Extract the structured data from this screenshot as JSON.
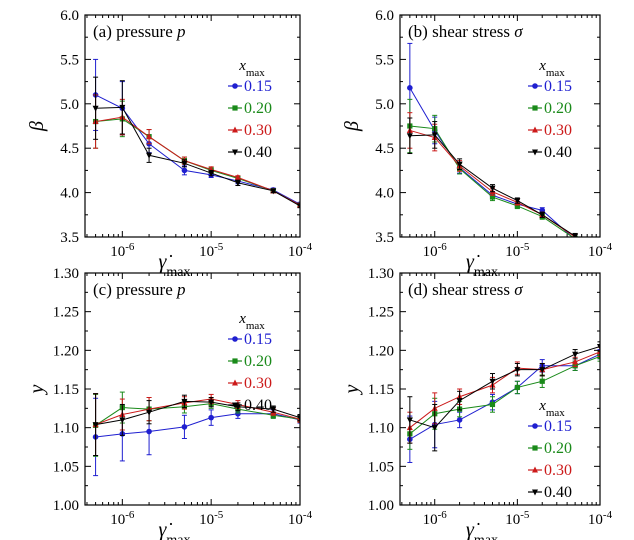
{
  "colors": {
    "0.15": "#1f1fd0",
    "0.20": "#1a8a1a",
    "0.30": "#cc1a1a",
    "0.40": "#000000"
  },
  "chart_data": [
    {
      "type": "line",
      "panel": "a",
      "title_prefix": "(a)  pressure ",
      "title_var": "p",
      "ylabel": "β",
      "xlabel_base": "γ̇",
      "xlabel_sub": "max",
      "xscale": "log",
      "xlim": [
        3.8e-07,
        0.0001
      ],
      "ylim": [
        3.5,
        6.0
      ],
      "yticks": [
        "3.5",
        "4.0",
        "4.5",
        "5.0",
        "5.5",
        "6.0"
      ],
      "xticks": [
        {
          "value": 1e-06,
          "base": "10",
          "exp": "-6"
        },
        {
          "value": 1e-05,
          "base": "10",
          "exp": "-5"
        },
        {
          "value": 0.0001,
          "base": "10",
          "exp": "-4"
        }
      ],
      "legend_title_base": "x",
      "legend_title_sub": "max",
      "legend_position": "right",
      "x": [
        5e-07,
        1e-06,
        2e-06,
        5e-06,
        1e-05,
        2e-05,
        5e-05,
        0.0001
      ],
      "series": [
        {
          "name": "0.15",
          "values": [
            5.1,
            4.95,
            4.55,
            4.25,
            4.2,
            4.13,
            4.03,
            3.87
          ],
          "errors": [
            0.4,
            0.3,
            0.1,
            0.05,
            0.03,
            0.03,
            0.02,
            0.02
          ]
        },
        {
          "name": "0.20",
          "values": [
            4.8,
            4.83,
            4.63,
            4.36,
            4.25,
            4.16,
            4.02,
            3.86
          ],
          "errors": [
            0.3,
            0.2,
            0.08,
            0.04,
            0.03,
            0.02,
            0.02,
            0.02
          ]
        },
        {
          "name": "0.30",
          "values": [
            4.8,
            4.85,
            4.63,
            4.36,
            4.26,
            4.17,
            4.02,
            3.86
          ],
          "errors": [
            0.3,
            0.2,
            0.08,
            0.04,
            0.03,
            0.02,
            0.02,
            0.02
          ]
        },
        {
          "name": "0.40",
          "values": [
            4.95,
            4.96,
            4.42,
            4.33,
            4.22,
            4.11,
            4.02,
            3.85
          ],
          "errors": [
            0.35,
            0.3,
            0.08,
            0.04,
            0.03,
            0.03,
            0.02,
            0.02
          ]
        }
      ]
    },
    {
      "type": "line",
      "panel": "b",
      "title_prefix": "(b)  shear stress ",
      "title_var": "σ",
      "ylabel": "β",
      "xlabel_base": "γ̇",
      "xlabel_sub": "max",
      "xscale": "log",
      "xlim": [
        3.8e-07,
        0.0001
      ],
      "ylim": [
        3.5,
        6.0
      ],
      "yticks": [
        "3.5",
        "4.0",
        "4.5",
        "5.0",
        "5.5",
        "6.0"
      ],
      "xticks": [
        {
          "value": 1e-06,
          "base": "10",
          "exp": "-6"
        },
        {
          "value": 1e-05,
          "base": "10",
          "exp": "-5"
        },
        {
          "value": 0.0001,
          "base": "10",
          "exp": "-4"
        }
      ],
      "legend_title_base": "x",
      "legend_title_sub": "max",
      "legend_position": "right",
      "x": [
        5e-07,
        1e-06,
        2e-06,
        5e-06,
        1e-05,
        2e-05,
        5e-05
      ],
      "series": [
        {
          "name": "0.15",
          "values": [
            5.18,
            4.7,
            4.28,
            3.97,
            3.87,
            3.8,
            3.47
          ],
          "errors": [
            0.5,
            0.15,
            0.06,
            0.04,
            0.03,
            0.03,
            0.03
          ]
        },
        {
          "name": "0.20",
          "values": [
            4.75,
            4.72,
            4.27,
            3.95,
            3.85,
            3.73,
            3.48
          ],
          "errors": [
            0.3,
            0.15,
            0.06,
            0.04,
            0.03,
            0.03,
            0.03
          ]
        },
        {
          "name": "0.30",
          "values": [
            4.7,
            4.62,
            4.3,
            4.01,
            3.89,
            3.75,
            3.5
          ],
          "errors": [
            0.2,
            0.15,
            0.06,
            0.04,
            0.03,
            0.03,
            0.03
          ]
        },
        {
          "name": "0.40",
          "values": [
            4.64,
            4.65,
            4.32,
            4.05,
            3.91,
            3.75,
            3.51
          ],
          "errors": [
            0.2,
            0.15,
            0.06,
            0.04,
            0.03,
            0.03,
            0.03
          ]
        }
      ]
    },
    {
      "type": "line",
      "panel": "c",
      "title_prefix": "(c)  pressure ",
      "title_var": "p",
      "ylabel": "y",
      "xlabel_base": "γ̇",
      "xlabel_sub": "max",
      "xscale": "log",
      "xlim": [
        3.8e-07,
        0.0001
      ],
      "ylim": [
        1.0,
        1.3
      ],
      "yticks": [
        "1.00",
        "1.05",
        "1.10",
        "1.15",
        "1.20",
        "1.25",
        "1.30"
      ],
      "xticks": [
        {
          "value": 1e-06,
          "base": "10",
          "exp": "-6"
        },
        {
          "value": 1e-05,
          "base": "10",
          "exp": "-5"
        },
        {
          "value": 0.0001,
          "base": "10",
          "exp": "-4"
        }
      ],
      "legend_title_base": "x",
      "legend_title_sub": "max",
      "legend_position": "right",
      "x": [
        5e-07,
        1e-06,
        2e-06,
        5e-06,
        1e-05,
        2e-05,
        5e-05,
        0.0001
      ],
      "series": [
        {
          "name": "0.15",
          "values": [
            1.088,
            1.092,
            1.095,
            1.101,
            1.113,
            1.118,
            1.118,
            1.11
          ],
          "errors": [
            0.05,
            0.035,
            0.03,
            0.015,
            0.01,
            0.006,
            0.005,
            0.004
          ]
        },
        {
          "name": "0.20",
          "values": [
            1.103,
            1.126,
            1.124,
            1.127,
            1.131,
            1.124,
            1.116,
            1.111
          ],
          "errors": [
            0.04,
            0.02,
            0.015,
            0.008,
            0.006,
            0.005,
            0.004,
            0.004
          ]
        },
        {
          "name": "0.30",
          "values": [
            1.104,
            1.117,
            1.124,
            1.132,
            1.137,
            1.13,
            1.12,
            1.111
          ],
          "errors": [
            0.04,
            0.02,
            0.015,
            0.008,
            0.006,
            0.005,
            0.004,
            0.004
          ]
        },
        {
          "name": "0.40",
          "values": [
            1.104,
            1.11,
            1.12,
            1.134,
            1.133,
            1.127,
            1.124,
            1.113
          ],
          "errors": [
            0.04,
            0.02,
            0.015,
            0.008,
            0.006,
            0.005,
            0.004,
            0.004
          ]
        }
      ]
    },
    {
      "type": "line",
      "panel": "d",
      "title_prefix": "(d)  shear stress ",
      "title_var": "σ",
      "ylabel": "y",
      "xlabel_base": "γ̇",
      "xlabel_sub": "max",
      "xscale": "log",
      "xlim": [
        3.8e-07,
        0.0001
      ],
      "ylim": [
        1.0,
        1.3
      ],
      "yticks": [
        "1.00",
        "1.05",
        "1.10",
        "1.15",
        "1.20",
        "1.25",
        "1.30"
      ],
      "xticks": [
        {
          "value": 1e-06,
          "base": "10",
          "exp": "-6"
        },
        {
          "value": 1e-05,
          "base": "10",
          "exp": "-5"
        },
        {
          "value": 0.0001,
          "base": "10",
          "exp": "-4"
        }
      ],
      "legend_title_base": "x",
      "legend_title_sub": "max",
      "legend_position": "bottom-right",
      "x": [
        5e-07,
        1e-06,
        2e-06,
        5e-06,
        1e-05,
        2e-05,
        5e-05,
        0.0001
      ],
      "series": [
        {
          "name": "0.15",
          "values": [
            1.085,
            1.104,
            1.11,
            1.133,
            1.152,
            1.18,
            1.18,
            1.195
          ],
          "errors": [
            0.03,
            0.03,
            0.01,
            0.01,
            0.008,
            0.008,
            0.006,
            0.006
          ]
        },
        {
          "name": "0.20",
          "values": [
            1.092,
            1.118,
            1.124,
            1.13,
            1.152,
            1.16,
            1.18,
            1.192
          ],
          "errors": [
            0.02,
            0.02,
            0.01,
            0.01,
            0.008,
            0.008,
            0.006,
            0.006
          ]
        },
        {
          "name": "0.30",
          "values": [
            1.1,
            1.125,
            1.14,
            1.155,
            1.177,
            1.175,
            1.185,
            1.198
          ],
          "errors": [
            0.02,
            0.02,
            0.01,
            0.01,
            0.008,
            0.008,
            0.006,
            0.006
          ]
        },
        {
          "name": "0.40",
          "values": [
            1.11,
            1.1,
            1.135,
            1.16,
            1.175,
            1.175,
            1.195,
            1.205
          ],
          "errors": [
            0.03,
            0.03,
            0.012,
            0.01,
            0.008,
            0.008,
            0.006,
            0.006
          ]
        }
      ]
    }
  ]
}
